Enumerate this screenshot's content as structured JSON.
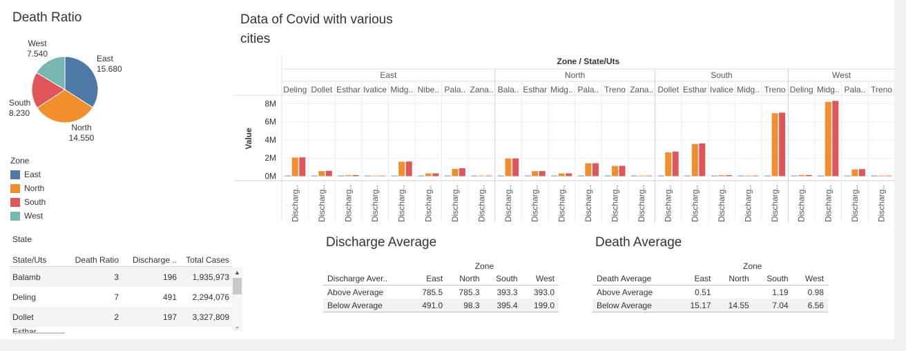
{
  "colors": {
    "East": "#4e79a7",
    "North": "#f28e2b",
    "South": "#e15759",
    "West": "#76b7b2"
  },
  "pie": {
    "title": "Death Ratio",
    "legend_title": "Zone",
    "slices": [
      {
        "zone": "East",
        "value": "15.680"
      },
      {
        "zone": "North",
        "value": "14.550"
      },
      {
        "zone": "South",
        "value": "8.230"
      },
      {
        "zone": "West",
        "value": "7.540"
      }
    ]
  },
  "legend": [
    {
      "label": "East"
    },
    {
      "label": "North"
    },
    {
      "label": "South"
    },
    {
      "label": "West"
    }
  ],
  "state_table": {
    "title": "State",
    "headers": [
      "State/Uts",
      "Death Ratio",
      "Discharge ..",
      "Total Cases"
    ],
    "rows": [
      [
        "Balamb",
        "3",
        "196",
        "1,935,973"
      ],
      [
        "Deling",
        "7",
        "491",
        "2,294,076"
      ],
      [
        "Dollet",
        "2",
        "197",
        "3,327,809"
      ]
    ],
    "partial_row": "Esthar"
  },
  "chart_data": {
    "type": "bar",
    "title": "Data of Covid with various cities",
    "title_lines": [
      "Data of Covid with various",
      "cities"
    ],
    "header": "Zone / State/Uts",
    "ylabel": "Value",
    "yticks": [
      "8M",
      "6M",
      "4M",
      "2M",
      "0M"
    ],
    "ytick_values": [
      8000000,
      6000000,
      4000000,
      2000000,
      0
    ],
    "ylim": [
      -500000,
      8800000
    ],
    "measure_label": "Discharg..",
    "zones": [
      {
        "name": "East",
        "cities": [
          {
            "name": "Deling",
            "values": [
              0,
              2050000,
              2080000
            ]
          },
          {
            "name": "Dollet",
            "values": [
              0,
              550000,
              600000
            ]
          },
          {
            "name": "Esthar",
            "values": [
              0,
              100000,
              110000
            ]
          },
          {
            "name": "Ivalice",
            "values": [
              0,
              50000,
              55000
            ]
          },
          {
            "name": "Midg..",
            "values": [
              0,
              1600000,
              1620000
            ]
          },
          {
            "name": "Nibe..",
            "values": [
              0,
              300000,
              310000
            ]
          },
          {
            "name": "Pala..",
            "values": [
              0,
              800000,
              880000
            ]
          },
          {
            "name": "Zana..",
            "values": [
              0,
              50000,
              55000
            ]
          }
        ]
      },
      {
        "name": "North",
        "cities": [
          {
            "name": "Bala..",
            "values": [
              0,
              1950000,
              1960000
            ]
          },
          {
            "name": "Esthar",
            "values": [
              0,
              550000,
              560000
            ]
          },
          {
            "name": "Midg..",
            "values": [
              0,
              300000,
              310000
            ]
          },
          {
            "name": "Pala..",
            "values": [
              0,
              1420000,
              1420000
            ]
          },
          {
            "name": "Treno",
            "values": [
              0,
              1120000,
              1140000
            ]
          },
          {
            "name": "Zana..",
            "values": [
              0,
              50000,
              55000
            ]
          }
        ]
      },
      {
        "name": "South",
        "cities": [
          {
            "name": "Dollet",
            "values": [
              0,
              2620000,
              2720000
            ]
          },
          {
            "name": "Esthar",
            "values": [
              0,
              3550000,
              3620000
            ]
          },
          {
            "name": "Ivalice",
            "values": [
              0,
              100000,
              110000
            ]
          },
          {
            "name": "Midg..",
            "values": [
              0,
              0,
              0
            ]
          },
          {
            "name": "Treno",
            "values": [
              0,
              6950000,
              7020000
            ]
          }
        ]
      },
      {
        "name": "West",
        "cities": [
          {
            "name": "Deling",
            "values": [
              0,
              120000,
              130000
            ]
          },
          {
            "name": "Midg..",
            "values": [
              0,
              8200000,
              8320000
            ]
          },
          {
            "name": "Pala..",
            "values": [
              0,
              750000,
              780000
            ]
          },
          {
            "name": "Treno",
            "values": [
              0,
              0,
              0
            ]
          }
        ]
      }
    ]
  },
  "discharge_avg": {
    "title": "Discharge Average",
    "group_header": "Zone",
    "headers": [
      "Discharge Aver..",
      "East",
      "North",
      "South",
      "West"
    ],
    "rows": [
      [
        "Above Average",
        "785.5",
        "785.3",
        "393.3",
        "393.0"
      ],
      [
        "Below Average",
        "491.0",
        "98.3",
        "395.4",
        "199.0"
      ]
    ]
  },
  "death_avg": {
    "title": "Death Average",
    "group_header": "Zone",
    "headers": [
      "Death Average",
      "East",
      "North",
      "South",
      "West"
    ],
    "rows": [
      [
        "Above Average",
        "0.51",
        "",
        "1.19",
        "0.98"
      ],
      [
        "Below Average",
        "15.17",
        "14.55",
        "7.04",
        "6.56"
      ]
    ]
  }
}
